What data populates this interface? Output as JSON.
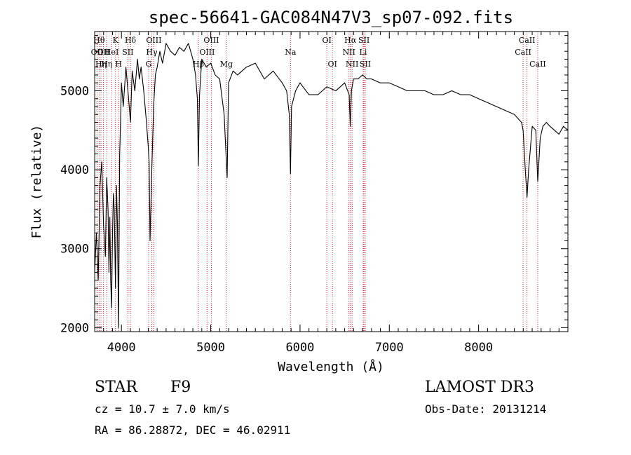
{
  "chart_data": {
    "type": "line",
    "title": "spec-56641-GAC084N47V3_sp07-092.fits",
    "xlabel": "Wavelength (Å)",
    "ylabel": "Flux (relative)",
    "xlim": [
      3700,
      9000
    ],
    "ylim": [
      1950,
      5750
    ],
    "x_ticks": [
      4000,
      5000,
      6000,
      7000,
      8000
    ],
    "y_ticks": [
      2000,
      3000,
      4000,
      5000
    ],
    "grid": false,
    "series": [
      {
        "name": "spectrum",
        "x": [
          3700,
          3720,
          3740,
          3760,
          3780,
          3800,
          3820,
          3835,
          3850,
          3860,
          3870,
          3880,
          3889,
          3900,
          3910,
          3920,
          3933,
          3945,
          3955,
          3968,
          3980,
          3990,
          4000,
          4020,
          4050,
          4080,
          4101,
          4120,
          4150,
          4180,
          4200,
          4220,
          4250,
          4280,
          4300,
          4310,
          4320,
          4340,
          4360,
          4380,
          4400,
          4430,
          4460,
          4500,
          4550,
          4600,
          4650,
          4700,
          4750,
          4800,
          4830,
          4850,
          4861,
          4875,
          4900,
          4950,
          5000,
          5050,
          5100,
          5150,
          5167,
          5184,
          5200,
          5250,
          5300,
          5400,
          5500,
          5600,
          5700,
          5800,
          5850,
          5880,
          5893,
          5905,
          5950,
          6000,
          6100,
          6200,
          6300,
          6400,
          6500,
          6550,
          6563,
          6575,
          6600,
          6650,
          6700,
          6750,
          6800,
          6900,
          7000,
          7100,
          7200,
          7300,
          7400,
          7500,
          7600,
          7700,
          7800,
          7900,
          8000,
          8100,
          8200,
          8300,
          8400,
          8480,
          8498,
          8520,
          8542,
          8560,
          8600,
          8640,
          8662,
          8690,
          8720,
          8760,
          8800,
          8850,
          8900,
          8950,
          9000
        ],
        "values": [
          2700,
          3200,
          2600,
          3800,
          4100,
          3300,
          2900,
          3900,
          3500,
          2700,
          3400,
          2600,
          2250,
          3200,
          3700,
          3500,
          2500,
          3800,
          3300,
          2000,
          4200,
          4600,
          5100,
          4800,
          5300,
          4900,
          4600,
          5250,
          5000,
          5400,
          5150,
          5300,
          5000,
          4600,
          4300,
          4100,
          3100,
          4000,
          4800,
          5200,
          5300,
          5500,
          5350,
          5600,
          5500,
          5450,
          5550,
          5500,
          5600,
          5400,
          5200,
          4900,
          4050,
          4950,
          5400,
          5300,
          5350,
          5200,
          5150,
          4700,
          4300,
          3900,
          5100,
          5250,
          5200,
          5300,
          5350,
          5150,
          5250,
          5100,
          5000,
          4700,
          3950,
          4800,
          5000,
          5100,
          4950,
          4950,
          5050,
          5000,
          5100,
          4950,
          4550,
          5000,
          5150,
          5150,
          5200,
          5150,
          5150,
          5100,
          5100,
          5050,
          5000,
          5000,
          5000,
          4950,
          4950,
          5000,
          4950,
          4950,
          4900,
          4850,
          4800,
          4750,
          4700,
          4600,
          4500,
          4050,
          3650,
          4000,
          4550,
          4500,
          3850,
          4400,
          4550,
          4600,
          4550,
          4500,
          4450,
          4550,
          4500
        ]
      }
    ],
    "line_markers": [
      {
        "x": 3727,
        "label": "OII",
        "row": 2
      },
      {
        "x": 3750,
        "label": "Hθ",
        "row": 1
      },
      {
        "x": 3771,
        "label": "Hη",
        "row": 3
      },
      {
        "x": 3798,
        "label": "OII",
        "row": 2
      },
      {
        "x": 3835,
        "label": "Hη",
        "row": 3
      },
      {
        "x": 3889,
        "label": "HeI",
        "row": 2
      },
      {
        "x": 3933,
        "label": "K",
        "row": 1
      },
      {
        "x": 3968,
        "label": "H",
        "row": 3
      },
      {
        "x": 4072,
        "label": "SII",
        "row": 2
      },
      {
        "x": 4101,
        "label": "Hδ",
        "row": 1
      },
      {
        "x": 4304,
        "label": "G",
        "row": 3
      },
      {
        "x": 4340,
        "label": "Hγ",
        "row": 2
      },
      {
        "x": 4363,
        "label": "OIII",
        "row": 1
      },
      {
        "x": 4861,
        "label": "Hβ",
        "row": 3
      },
      {
        "x": 4959,
        "label": "OIII",
        "row": 2
      },
      {
        "x": 5007,
        "label": "OIII",
        "row": 1
      },
      {
        "x": 5175,
        "label": "Mg",
        "row": 3
      },
      {
        "x": 5893,
        "label": "Na",
        "row": 2
      },
      {
        "x": 6300,
        "label": "OI",
        "row": 1
      },
      {
        "x": 6363,
        "label": "OI",
        "row": 3
      },
      {
        "x": 6548,
        "label": "NII",
        "row": 2
      },
      {
        "x": 6563,
        "label": "Hα",
        "row": 1
      },
      {
        "x": 6583,
        "label": "NII",
        "row": 3
      },
      {
        "x": 6707,
        "label": "Li",
        "row": 2
      },
      {
        "x": 6716,
        "label": "SII",
        "row": 1
      },
      {
        "x": 6731,
        "label": "SII",
        "row": 3
      },
      {
        "x": 8498,
        "label": "CaII",
        "row": 2
      },
      {
        "x": 8542,
        "label": "CaII",
        "row": 1
      },
      {
        "x": 8662,
        "label": "CaII",
        "row": 3
      }
    ]
  },
  "info": {
    "object_class": "STAR",
    "subclass": "F9",
    "survey": "LAMOST DR3",
    "cz_line": "cz = 10.7 ± 7.0 km/s",
    "obs_date": "Obs-Date: 20131214",
    "coords": "RA =  86.28872, DEC =  46.02911"
  }
}
